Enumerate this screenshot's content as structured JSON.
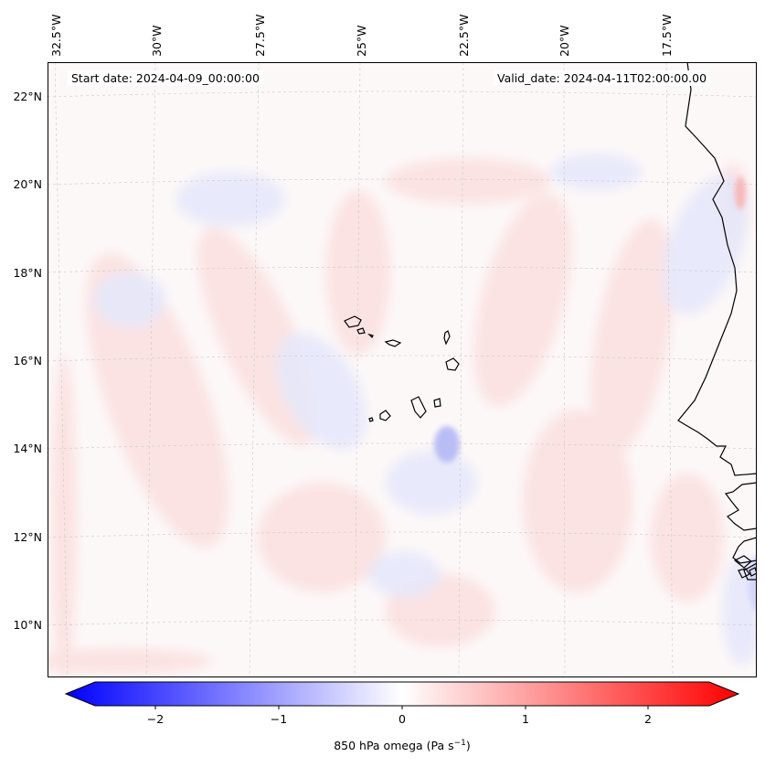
{
  "map": {
    "start_date": "Start date: 2024-04-09_00:00:00",
    "valid_date": "Valid_date: 2024-04-11T02:00:00.00",
    "lon_labels": [
      "32.5°W",
      "30°W",
      "27.5°W",
      "25°W",
      "22.5°W",
      "20°W",
      "17.5°W"
    ],
    "lat_labels": [
      "22°N",
      "20°N",
      "18°N",
      "16°N",
      "14°N",
      "12°N",
      "10°N"
    ],
    "colorbar": {
      "ticks": [
        "−2",
        "−1",
        "0",
        "1",
        "2"
      ],
      "label": "850 hPa omega (Pa s",
      "label_sup": "−1",
      "label_close": ")",
      "vmin": -2.6,
      "vmax": 2.6,
      "low_color": "#0000ff",
      "mid_color": "#ffffff",
      "high_color": "#ff0000"
    }
  }
}
